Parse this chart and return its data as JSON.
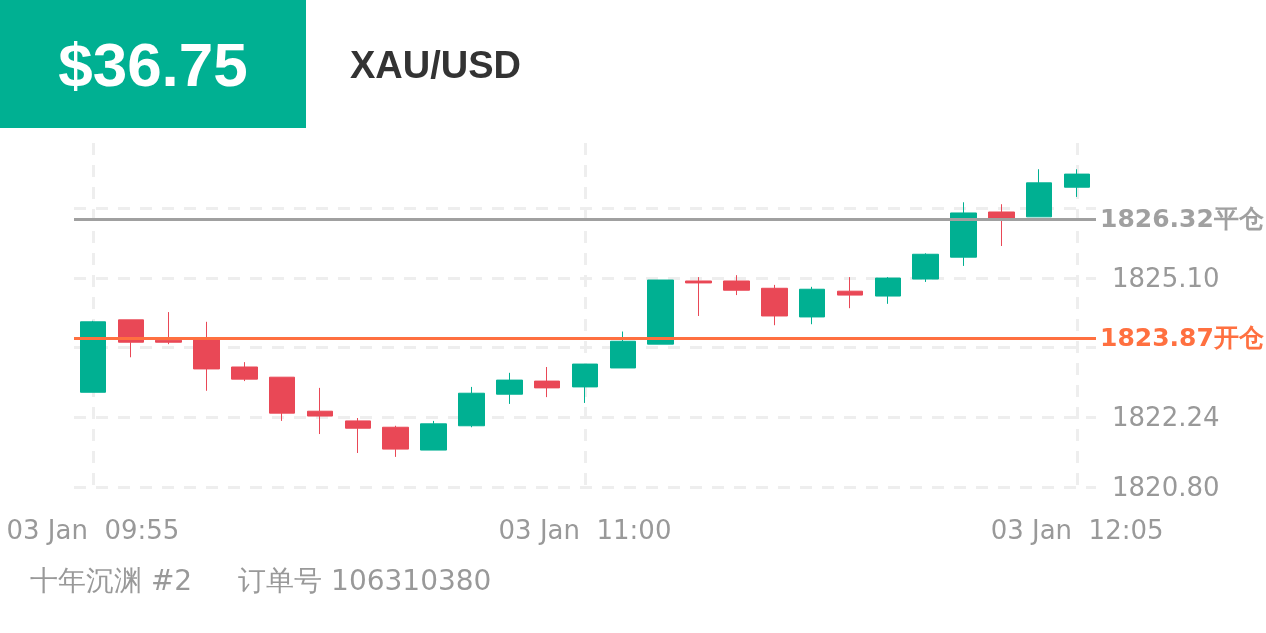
{
  "chart_data": {
    "type": "candlestick",
    "title": "XAU/USD",
    "subtitle": "$36.75",
    "annotations": [
      "十年沉渊 #2",
      "订单号 106310380"
    ],
    "categories": [
      "03 Jan  09:55",
      null,
      null,
      null,
      null,
      null,
      null,
      null,
      null,
      null,
      null,
      null,
      null,
      "03 Jan  11:00",
      null,
      null,
      null,
      null,
      null,
      null,
      null,
      null,
      null,
      null,
      null,
      null,
      "03 Jan  12:05"
    ],
    "ohlc": [
      [
        1822.75,
        1824.22,
        1822.75,
        1824.2
      ],
      [
        1824.24,
        1824.24,
        1823.47,
        1823.78
      ],
      [
        1823.82,
        1824.4,
        1823.74,
        1823.78
      ],
      [
        1823.85,
        1824.2,
        1822.78,
        1823.23
      ],
      [
        1823.27,
        1823.37,
        1822.98,
        1823.02
      ],
      [
        1823.06,
        1823.06,
        1822.16,
        1822.32
      ],
      [
        1822.36,
        1822.84,
        1821.89,
        1822.26
      ],
      [
        1822.16,
        1822.22,
        1821.5,
        1822.01
      ],
      [
        1822.03,
        1822.06,
        1821.42,
        1821.58
      ],
      [
        1821.56,
        1822.16,
        1821.56,
        1822.1
      ],
      [
        1822.06,
        1822.86,
        1822.03,
        1822.73
      ],
      [
        1822.71,
        1823.15,
        1822.51,
        1823.0
      ],
      [
        1822.98,
        1823.27,
        1822.65,
        1822.84
      ],
      [
        1822.86,
        1823.33,
        1822.53,
        1823.33
      ],
      [
        1823.25,
        1824.0,
        1823.25,
        1823.8
      ],
      [
        1823.74,
        1825.06,
        1823.74,
        1825.06
      ],
      [
        1825.04,
        1825.12,
        1824.32,
        1825.0
      ],
      [
        1825.04,
        1825.16,
        1824.75,
        1824.85
      ],
      [
        1824.89,
        1824.96,
        1824.13,
        1824.32
      ],
      [
        1824.3,
        1824.92,
        1824.15,
        1824.87
      ],
      [
        1824.83,
        1825.12,
        1824.48,
        1824.75
      ],
      [
        1824.73,
        1825.12,
        1824.57,
        1825.1
      ],
      [
        1825.08,
        1825.61,
        1825.02,
        1825.59
      ],
      [
        1825.53,
        1826.66,
        1825.35,
        1826.44
      ],
      [
        1826.46,
        1826.62,
        1825.76,
        1826.33
      ],
      [
        1826.36,
        1827.34,
        1826.36,
        1827.06
      ],
      [
        1826.97,
        1827.34,
        1826.77,
        1827.24
      ]
    ],
    "colors": [
      "#00b092",
      "#e94856",
      "#e94856",
      "#e94856",
      "#e94856",
      "#e94856",
      "#e94856",
      "#e94856",
      "#e94856",
      "#00b092",
      "#00b092",
      "#00b092",
      "#e94856",
      "#00b092",
      "#00b092",
      "#00b092",
      "#e94856",
      "#e94856",
      "#e94856",
      "#00b092",
      "#e94856",
      "#00b092",
      "#00b092",
      "#00b092",
      "#e94856",
      "#00b092",
      "#00b092"
    ],
    "ylim": [
      1820.8,
      1827.88
    ],
    "yticks": [
      {
        "value": 1820.8,
        "label": "1820.80"
      },
      1822.24,
      {
        "value": 1823.67,
        "label": null
      },
      {
        "value": 1825.1,
        "label": "1825.10"
      },
      {
        "value": 1826.53,
        "label": null
      }
    ],
    "ref_lines": [
      {
        "axis": "y",
        "value": 1826.32,
        "label": "1826.32平仓",
        "color": "#a0a0a0"
      },
      {
        "axis": "y",
        "value": 1823.87,
        "label": "1823.87开仓",
        "color": "#ff7040"
      }
    ],
    "grid": true
  }
}
